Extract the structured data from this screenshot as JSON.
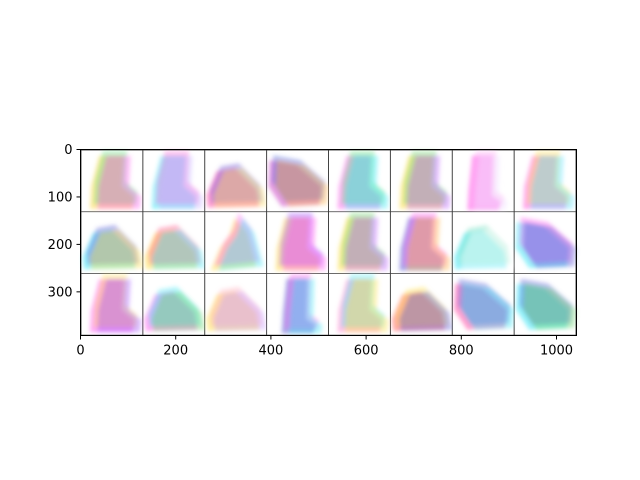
{
  "chart_data": {
    "type": "heatmap",
    "title": "",
    "xlabel": "",
    "ylabel": "",
    "xlim": [
      0,
      1042
    ],
    "ylim": [
      392,
      0
    ],
    "grid": false,
    "xticks": [
      0,
      200,
      400,
      600,
      800,
      1000
    ],
    "yticks": [
      0,
      100,
      200,
      300
    ],
    "xtick_labels": [
      "0",
      "200",
      "400",
      "600",
      "800",
      "1000"
    ],
    "ytick_labels": [
      "0",
      "100",
      "200",
      "300"
    ],
    "image_grid": {
      "rows": 3,
      "cols": 8,
      "tile_size": 128,
      "padding": 2,
      "tiles": [
        {
          "row": 0,
          "col": 0,
          "shape": "boot",
          "colors": [
            "#ffd84a",
            "#55e07a",
            "#ff5cf0"
          ]
        },
        {
          "row": 0,
          "col": 1,
          "shape": "boot",
          "colors": [
            "#3fe8f5",
            "#ff6ad9",
            "#c9b4ff"
          ]
        },
        {
          "row": 0,
          "col": 2,
          "shape": "shoe",
          "colors": [
            "#ff4fa8",
            "#6b5bd6",
            "#ffe066"
          ]
        },
        {
          "row": 0,
          "col": 3,
          "shape": "sneaker",
          "colors": [
            "#d04cc8",
            "#3b5bd6",
            "#ffb347"
          ]
        },
        {
          "row": 0,
          "col": 4,
          "shape": "boot",
          "colors": [
            "#ff6af0",
            "#5ce07a",
            "#3fe8f5"
          ]
        },
        {
          "row": 0,
          "col": 5,
          "shape": "boot",
          "colors": [
            "#ffe04a",
            "#6ad86a",
            "#c060ff"
          ]
        },
        {
          "row": 0,
          "col": 6,
          "shape": "tall-boot",
          "colors": [
            "#ff4fe8",
            "#ffb0f5",
            "#f0e0ff"
          ]
        },
        {
          "row": 0,
          "col": 7,
          "shape": "boot",
          "colors": [
            "#ff5ce0",
            "#ffe04a",
            "#5ce0ff"
          ]
        },
        {
          "row": 1,
          "col": 0,
          "shape": "shoe",
          "colors": [
            "#3fe8f5",
            "#5b5bd6",
            "#ffe04a"
          ]
        },
        {
          "row": 1,
          "col": 1,
          "shape": "shoe",
          "colors": [
            "#ffe04a",
            "#ff4f8a",
            "#3fe8f5"
          ]
        },
        {
          "row": 1,
          "col": 2,
          "shape": "heel",
          "colors": [
            "#ffe04a",
            "#ff5cf0",
            "#3fe8f5"
          ]
        },
        {
          "row": 1,
          "col": 3,
          "shape": "boot",
          "colors": [
            "#ffd84a",
            "#a050ff",
            "#ff5cf0"
          ]
        },
        {
          "row": 1,
          "col": 4,
          "shape": "boot",
          "colors": [
            "#ffe04a",
            "#6ad86a",
            "#c060ff"
          ]
        },
        {
          "row": 1,
          "col": 5,
          "shape": "boot",
          "colors": [
            "#5b5bd6",
            "#ff5cf0",
            "#ffb347"
          ]
        },
        {
          "row": 1,
          "col": 6,
          "shape": "shoe",
          "colors": [
            "#3fe8f5",
            "#7ae0c0",
            "#ffffff"
          ]
        },
        {
          "row": 1,
          "col": 7,
          "shape": "sneaker",
          "colors": [
            "#3fe8f5",
            "#ff5cf0",
            "#5b5bd6"
          ]
        },
        {
          "row": 2,
          "col": 0,
          "shape": "boot",
          "colors": [
            "#ff5cf0",
            "#ffe04a",
            "#a050ff"
          ]
        },
        {
          "row": 2,
          "col": 1,
          "shape": "shoe",
          "colors": [
            "#ff5cf0",
            "#3fe8f5",
            "#6ad86a"
          ]
        },
        {
          "row": 2,
          "col": 2,
          "shape": "shoe",
          "colors": [
            "#ffe04a",
            "#ffb0c0",
            "#c8a0ff"
          ]
        },
        {
          "row": 2,
          "col": 3,
          "shape": "tall-boot",
          "colors": [
            "#5b5bd6",
            "#ff5cf0",
            "#3fe8f5"
          ]
        },
        {
          "row": 2,
          "col": 4,
          "shape": "boot",
          "colors": [
            "#ff8ad0",
            "#3fe8f5",
            "#ffe04a"
          ]
        },
        {
          "row": 2,
          "col": 5,
          "shape": "shoe",
          "colors": [
            "#ff5c5c",
            "#ffe04a",
            "#5b5bd6"
          ]
        },
        {
          "row": 2,
          "col": 6,
          "shape": "sneaker",
          "colors": [
            "#ff4fa8",
            "#5b5bd6",
            "#3fe8f5"
          ]
        },
        {
          "row": 2,
          "col": 7,
          "shape": "sneaker",
          "colors": [
            "#3fe8f5",
            "#5b5bd6",
            "#6ad86a"
          ]
        }
      ]
    }
  }
}
